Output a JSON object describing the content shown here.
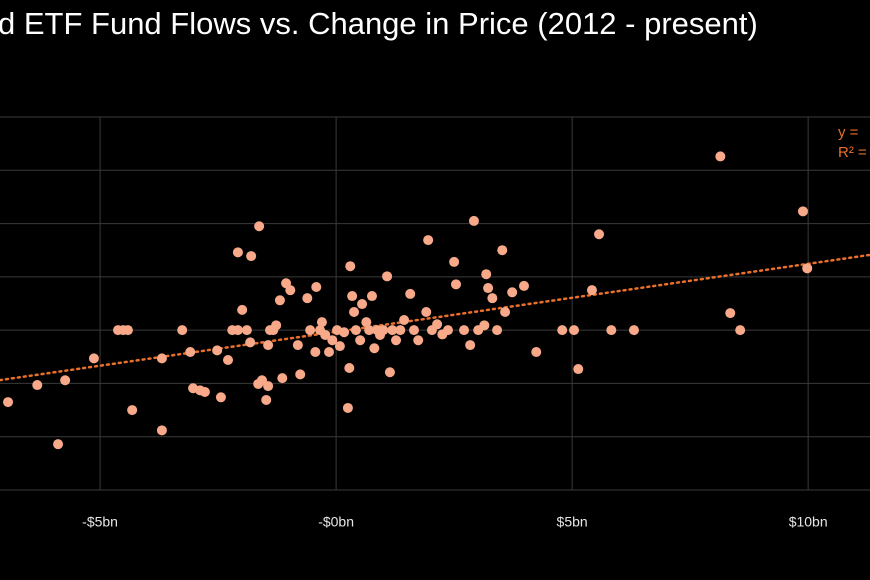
{
  "chart_data": {
    "type": "scatter",
    "title": "d ETF Fund Flows vs. Change in Price (2012 - present)",
    "annotations": [
      "y =",
      "R² ="
    ],
    "annotation_color": "#e8702a",
    "xlim": [
      -7.12,
      11.31
    ],
    "ylim": [
      -3,
      4
    ],
    "xticks": [
      {
        "value": -5,
        "label": "-$5bn"
      },
      {
        "value": 0,
        "label": "-$0bn"
      },
      {
        "value": 5,
        "label": "$5bn"
      },
      {
        "value": 10,
        "label": "$10bn"
      }
    ],
    "yticks": [
      -3,
      -2,
      -1,
      0,
      1,
      2,
      3,
      4
    ],
    "grid": true,
    "trendline": {
      "slope": 0.1275,
      "intercept": -0.03,
      "color": "#e8702a",
      "dashed": true
    },
    "series": [
      {
        "color": "#f7a98a",
        "x": [
          -6.95,
          -6.33,
          -5.74,
          -5.89,
          -5.13,
          -4.32,
          -4.62,
          -4.51,
          -4.41,
          -3.69,
          -3.69,
          -3.26,
          -3.09,
          -3.03,
          -2.88,
          -2.78,
          -2.44,
          -2.52,
          -2.29,
          -2.2,
          -2.08,
          -1.99,
          -2.08,
          -1.8,
          -1.63,
          -1.89,
          -1.82,
          -1.65,
          -1.57,
          -1.48,
          -1.44,
          -1.4,
          -1.33,
          -1.44,
          -1.27,
          -1.19,
          -1.06,
          -0.97,
          -1.14,
          -0.76,
          -0.81,
          -0.61,
          -0.55,
          -0.42,
          -0.44,
          -0.34,
          -0.3,
          -0.23,
          -0.15,
          -0.08,
          0.02,
          0.08,
          0.17,
          0.25,
          0.3,
          0.28,
          0.34,
          0.38,
          0.42,
          0.51,
          0.55,
          0.64,
          0.7,
          0.76,
          0.81,
          0.87,
          0.93,
          1.0,
          1.08,
          1.14,
          1.19,
          1.27,
          1.36,
          1.44,
          1.57,
          1.65,
          1.74,
          1.91,
          1.95,
          2.03,
          2.14,
          2.25,
          2.37,
          2.5,
          2.54,
          2.71,
          2.84,
          2.92,
          3.01,
          3.14,
          3.18,
          3.22,
          3.31,
          3.41,
          3.52,
          3.58,
          3.73,
          3.98,
          4.24,
          4.79,
          5.04,
          5.13,
          5.42,
          5.57,
          5.83,
          6.31,
          8.14,
          8.35,
          8.56,
          9.89,
          9.98
        ],
        "values": [
          -1.35,
          -1.03,
          -0.94,
          -2.14,
          -0.53,
          -1.5,
          0,
          0,
          0,
          -1.88,
          -0.53,
          0,
          -0.41,
          -1.09,
          -1.13,
          -1.16,
          -1.26,
          -0.38,
          -0.56,
          0,
          0,
          0.38,
          1.46,
          1.39,
          1.95,
          0,
          -0.23,
          -1.01,
          -0.94,
          -1.31,
          -1.05,
          0,
          0,
          -0.28,
          0.09,
          0.56,
          0.88,
          0.75,
          -0.9,
          -0.83,
          -0.28,
          0.6,
          0,
          0.81,
          -0.41,
          0,
          0.15,
          -0.09,
          -0.41,
          -0.19,
          0,
          -0.3,
          -0.04,
          -1.46,
          1.2,
          -0.71,
          0.64,
          0.34,
          0,
          -0.19,
          0.49,
          0.15,
          0,
          0.64,
          -0.34,
          0,
          -0.09,
          0,
          1.01,
          -0.79,
          0,
          -0.19,
          0,
          0.19,
          0.68,
          0,
          -0.19,
          0.34,
          1.69,
          0,
          0.11,
          -0.08,
          0,
          1.28,
          0.86,
          0,
          -0.28,
          2.05,
          0,
          0.09,
          1.05,
          0.79,
          0.6,
          0,
          1.5,
          0.34,
          0.71,
          0.83,
          -0.41,
          0,
          0,
          -0.73,
          0.75,
          1.8,
          0,
          0,
          3.26,
          0.32,
          0,
          2.23,
          1.16
        ]
      }
    ]
  }
}
